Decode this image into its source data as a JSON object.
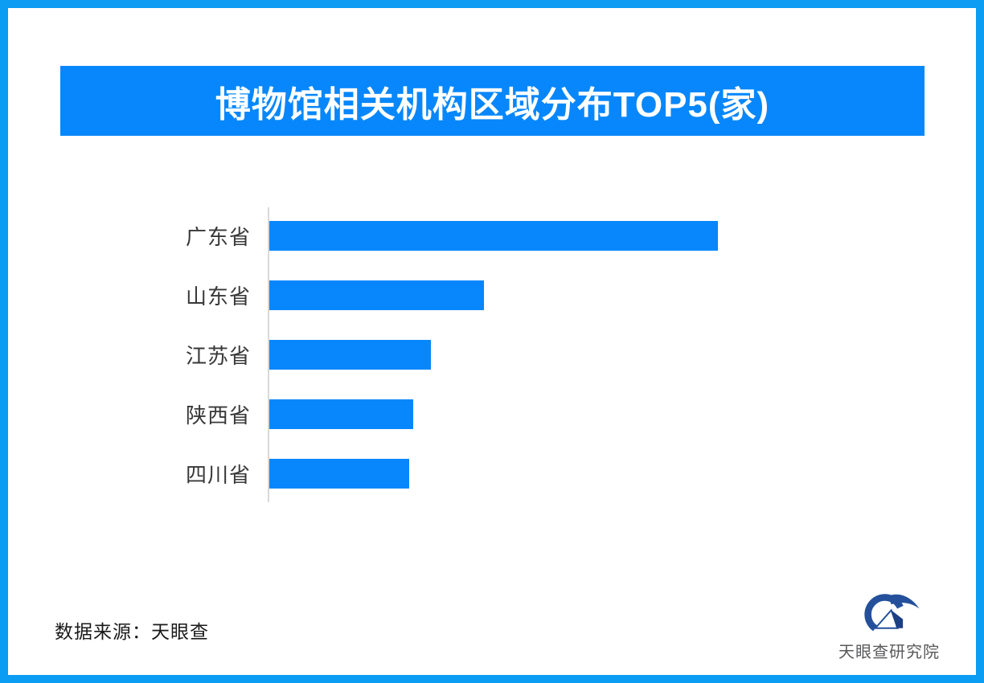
{
  "page": {
    "border_color": "#0b9cf3",
    "background_color": "#ffffff"
  },
  "header": {
    "title": "博物馆相关机构区域分布TOP5(家)",
    "banner_color": "#0787fb",
    "title_color": "#ffffff"
  },
  "chart_data": {
    "type": "bar",
    "orientation": "horizontal",
    "title": "博物馆相关机构区域分布TOP5(家)",
    "categories": [
      "广东省",
      "山东省",
      "江苏省",
      "陕西省",
      "四川省"
    ],
    "values": [
      558,
      267,
      201,
      179,
      174
    ],
    "values_unit": "relative bar lengths (px); chart shows no numeric value labels",
    "value_labels_shown": false,
    "xlabel": "",
    "ylabel": "",
    "grid": false,
    "legend": false,
    "bar_color": "#0787fb",
    "axis_line_color": "#d9d9d9",
    "category_label_color": "#383838"
  },
  "footer": {
    "source_label": "数据来源：天眼查"
  },
  "logo": {
    "text": "天眼查研究院",
    "icon": "tianyancha-eye-logo-icon",
    "icon_color": "#24509b",
    "icon_dark_color": "#1c3f85",
    "text_color": "#58595b"
  }
}
